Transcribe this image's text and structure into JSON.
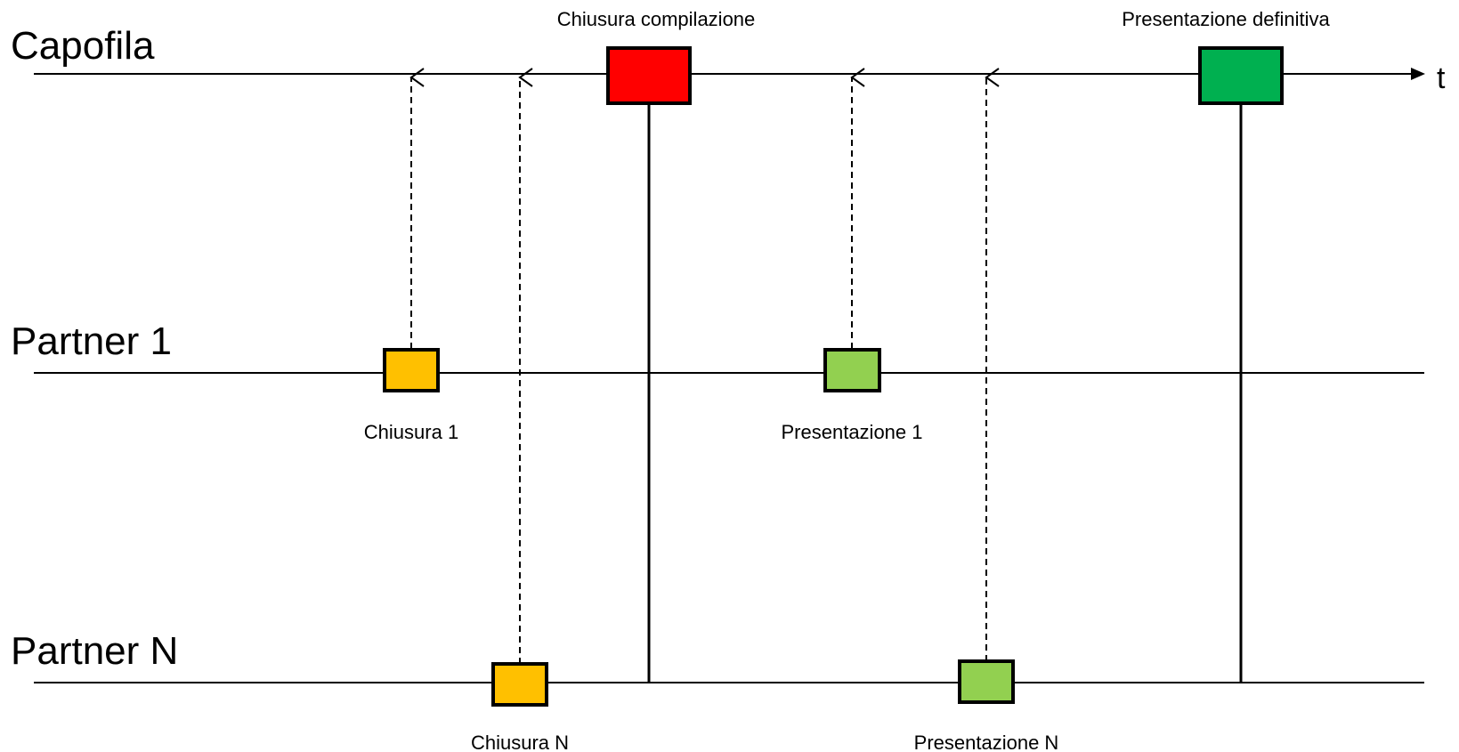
{
  "lanes": {
    "capofila": "Capofila",
    "partner1": "Partner 1",
    "partnerN": "Partner N"
  },
  "axis": {
    "label": "t"
  },
  "events": {
    "chiusura_compilazione": "Chiusura compilazione",
    "presentazione_definitiva": "Presentazione definitiva",
    "chiusura_1": "Chiusura 1",
    "presentazione_1": "Presentazione 1",
    "chiusura_n": "Chiusura N",
    "presentazione_n": "Presentazione N"
  },
  "colors": {
    "chiusura_compilazione": "#ff0000",
    "presentazione_definitiva": "#00b050",
    "chiusura_partner": "#ffc000",
    "presentazione_partner": "#92d050",
    "line": "#000000"
  }
}
